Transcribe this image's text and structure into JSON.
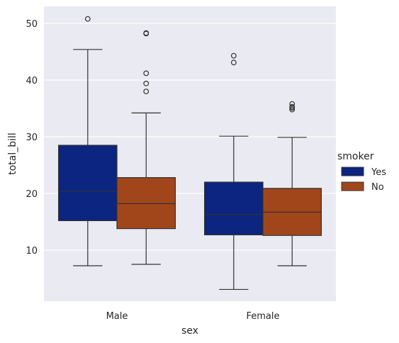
{
  "chart_data": {
    "type": "box",
    "title": "",
    "xlabel": "sex",
    "ylabel": "total_bill",
    "categories": [
      "Male",
      "Female"
    ],
    "ylim": [
      1,
      53
    ],
    "yticks": [
      10,
      20,
      30,
      40,
      50
    ],
    "grid": true,
    "legend": {
      "title": "smoker",
      "placement": "right"
    },
    "series": [
      {
        "name": "Yes",
        "color": "#0b2580",
        "boxes": [
          {
            "category": "Male",
            "whisker_low": 7.25,
            "q1": 15.2,
            "median": 20.4,
            "q3": 28.5,
            "whisker_high": 45.4,
            "outliers": [
              50.8
            ]
          },
          {
            "category": "Female",
            "whisker_low": 3.07,
            "q1": 12.7,
            "median": 16.3,
            "q3": 22.0,
            "whisker_high": 30.1,
            "outliers": [
              43.1,
              44.3
            ]
          }
        ]
      },
      {
        "name": "No",
        "color": "#a1461b",
        "boxes": [
          {
            "category": "Male",
            "whisker_low": 7.5,
            "q1": 13.8,
            "median": 18.2,
            "q3": 22.8,
            "whisker_high": 34.2,
            "outliers": [
              38.0,
              39.4,
              41.2,
              48.2,
              48.3
            ]
          },
          {
            "category": "Female",
            "whisker_low": 7.25,
            "q1": 12.6,
            "median": 16.7,
            "q3": 20.9,
            "whisker_high": 29.9,
            "outliers": [
              34.8,
              35.1,
              35.3,
              35.8
            ]
          }
        ]
      }
    ]
  }
}
